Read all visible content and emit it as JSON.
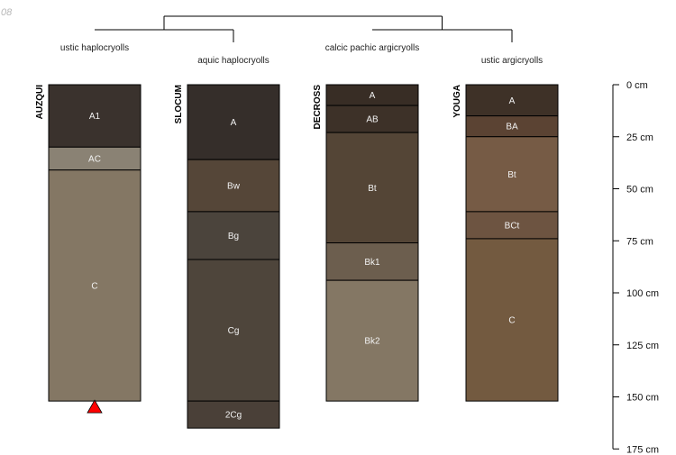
{
  "corner_label": ".08",
  "colors": {
    "line": "#000000",
    "horizon_text": "#f2f2f2",
    "truncation_marker": "#ff0000"
  },
  "chart_data": {
    "type": "soil-profile-sketch",
    "depth_unit": "cm",
    "depth_ticks": [
      {
        "value": 0,
        "label": "0 cm"
      },
      {
        "value": 25,
        "label": "25 cm"
      },
      {
        "value": 50,
        "label": "50 cm"
      },
      {
        "value": 75,
        "label": "75 cm"
      },
      {
        "value": 100,
        "label": "100 cm"
      },
      {
        "value": 125,
        "label": "125 cm"
      },
      {
        "value": 150,
        "label": "150 cm"
      },
      {
        "value": 175,
        "label": "175 cm"
      }
    ],
    "profiles": [
      {
        "name": "AUZQUI",
        "classification": "ustic haplocryolls",
        "bottom_marker": "truncated",
        "horizons": [
          {
            "name": "A1",
            "top": 0,
            "bottom": 30,
            "color": "#3a322d"
          },
          {
            "name": "AC",
            "top": 30,
            "bottom": 41,
            "color": "#8a8274"
          },
          {
            "name": "C",
            "top": 41,
            "bottom": 152,
            "color": "#847764"
          }
        ]
      },
      {
        "name": "SLOCUM",
        "classification": "aquic haplocryolls",
        "horizons": [
          {
            "name": "A",
            "top": 0,
            "bottom": 36,
            "color": "#352e2a"
          },
          {
            "name": "Bw",
            "top": 36,
            "bottom": 61,
            "color": "#554638"
          },
          {
            "name": "Bg",
            "top": 61,
            "bottom": 84,
            "color": "#4b443c"
          },
          {
            "name": "Cg",
            "top": 84,
            "bottom": 152,
            "color": "#4e453b"
          },
          {
            "name": "2Cg",
            "top": 152,
            "bottom": 165,
            "color": "#4a4038"
          }
        ]
      },
      {
        "name": "DECROSS",
        "classification": "calcic pachic argicryolls",
        "horizons": [
          {
            "name": "A",
            "top": 0,
            "bottom": 10,
            "color": "#382d25"
          },
          {
            "name": "AB",
            "top": 10,
            "bottom": 23,
            "color": "#3d3128"
          },
          {
            "name": "Bt",
            "top": 23,
            "bottom": 76,
            "color": "#544536"
          },
          {
            "name": "Bk1",
            "top": 76,
            "bottom": 94,
            "color": "#6c5e4e"
          },
          {
            "name": "Bk2",
            "top": 94,
            "bottom": 152,
            "color": "#847764"
          }
        ]
      },
      {
        "name": "YOUGA",
        "classification": "ustic argicryolls",
        "horizons": [
          {
            "name": "A",
            "top": 0,
            "bottom": 15,
            "color": "#3e3127"
          },
          {
            "name": "BA",
            "top": 15,
            "bottom": 25,
            "color": "#5b4333"
          },
          {
            "name": "Bt",
            "top": 25,
            "bottom": 61,
            "color": "#765b45"
          },
          {
            "name": "BCt",
            "top": 61,
            "bottom": 74,
            "color": "#6d5441"
          },
          {
            "name": "C",
            "top": 74,
            "bottom": 152,
            "color": "#735a40"
          }
        ]
      }
    ]
  }
}
